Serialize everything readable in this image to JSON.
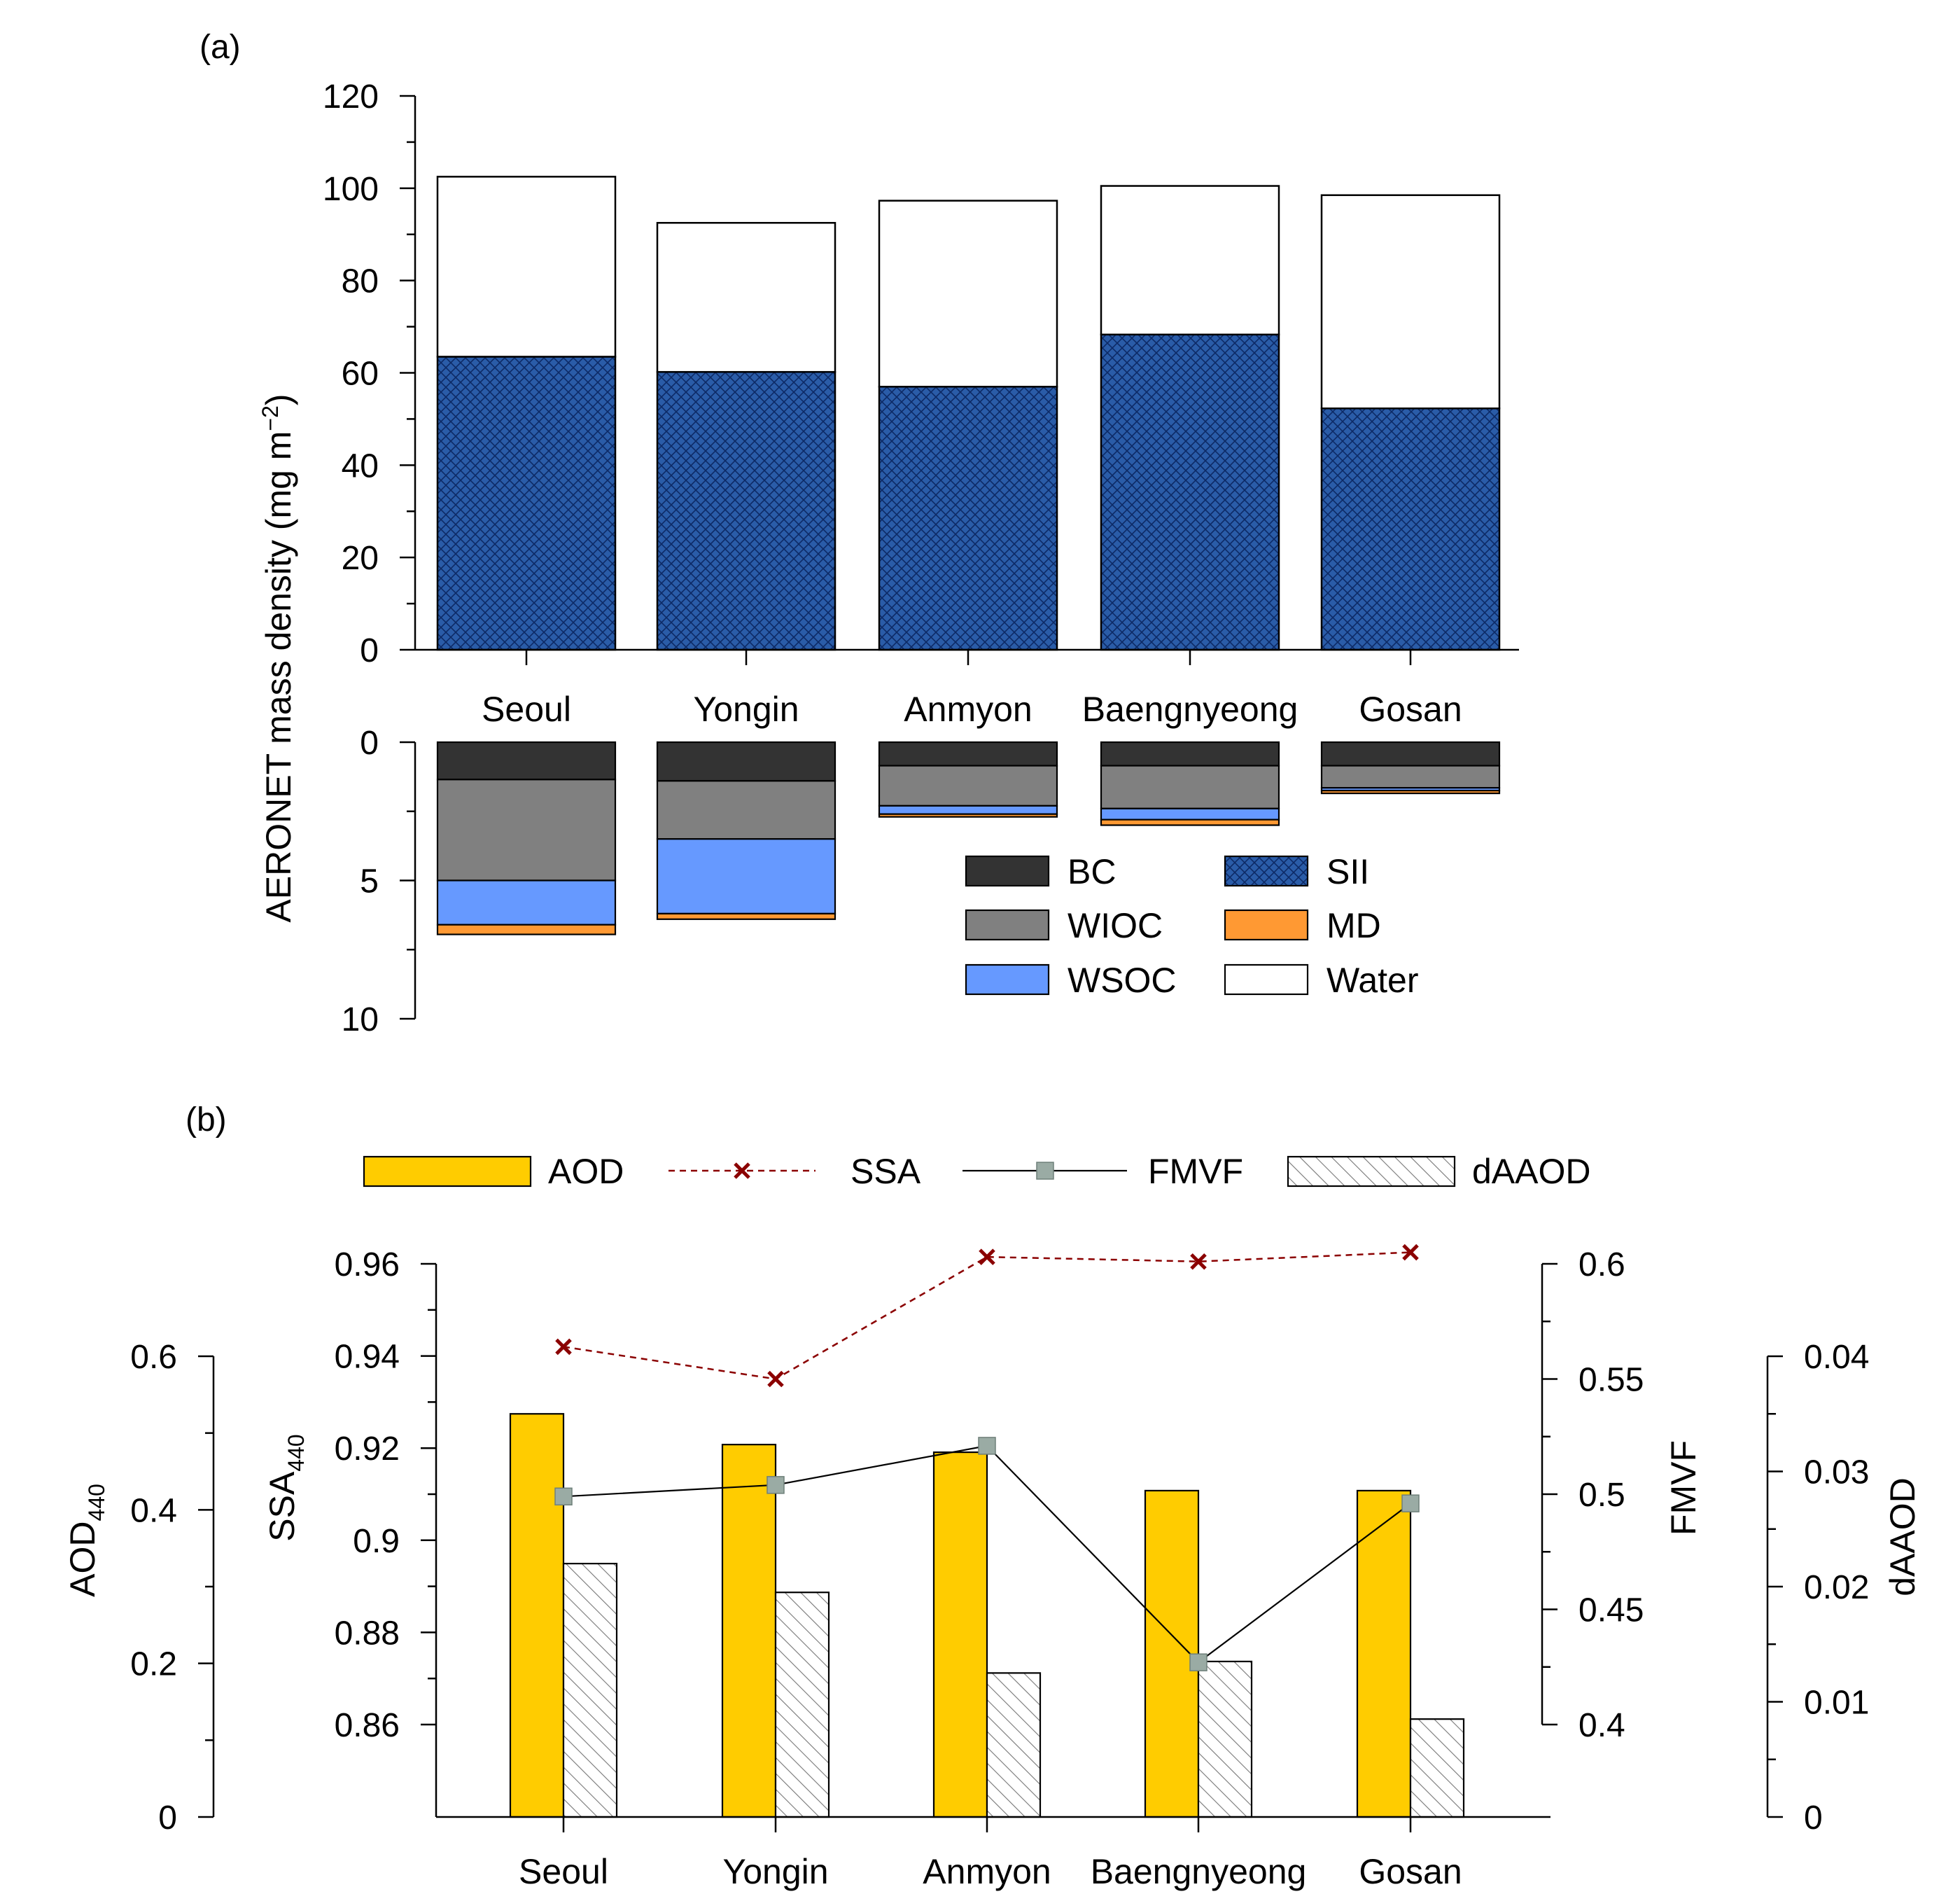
{
  "colors": {
    "BC": "#333333",
    "WIOC": "#808080",
    "WSOC": "#6699ff",
    "MD": "#ff9933",
    "SII": "#2a5ca8",
    "Water": "#ffffff",
    "AOD": "#ffcc00",
    "SSA": "#8b0000",
    "FMVF_marker": "#9aaba4",
    "dAAOD_hatch": "#777777"
  },
  "chart_data": [
    {
      "type": "bar",
      "panel_label": "(a)",
      "ylabel": "AERONET mass density (mg m",
      "ylabel_sup": "−2",
      "ylabel_close": ")",
      "categories": [
        "Seoul",
        "Yongin",
        "Anmyon",
        "Baengnyeong",
        "Gosan"
      ],
      "upper": {
        "stacked": true,
        "ylim": [
          0,
          120
        ],
        "yticks": [
          "0",
          "20",
          "40",
          "60",
          "80",
          "100",
          "120"
        ],
        "series": [
          {
            "name": "SII",
            "values": [
              63.5,
              60.2,
              57.0,
              68.3,
              52.3
            ]
          },
          {
            "name": "Water",
            "values": [
              39.0,
              32.3,
              40.3,
              32.2,
              46.2
            ]
          }
        ]
      },
      "lower": {
        "stacked": true,
        "inverted": true,
        "ylim": [
          0,
          10
        ],
        "yticks": [
          "0",
          "5",
          "10"
        ],
        "series": [
          {
            "name": "BC",
            "values": [
              1.35,
              1.4,
              0.85,
              0.85,
              0.85
            ]
          },
          {
            "name": "WIOC",
            "values": [
              3.65,
              2.1,
              1.45,
              1.55,
              0.8
            ]
          },
          {
            "name": "WSOC",
            "values": [
              1.6,
              2.7,
              0.3,
              0.4,
              0.1
            ]
          },
          {
            "name": "MD",
            "values": [
              0.35,
              0.2,
              0.1,
              0.2,
              0.1
            ]
          }
        ]
      },
      "legend": [
        "BC",
        "WIOC",
        "WSOC",
        "SII",
        "MD",
        "Water"
      ]
    },
    {
      "type": "bar",
      "panel_label": "(b)",
      "categories": [
        "Seoul",
        "Yongin",
        "Anmyon",
        "Baengnyeong",
        "Gosan"
      ],
      "legend": [
        "AOD",
        "SSA",
        "FMVF",
        "dAAOD"
      ],
      "axes": {
        "aod": {
          "label": "AOD",
          "sub": "440",
          "ylim": [
            0,
            0.6
          ],
          "yticks": [
            "0",
            "0.2",
            "0.4",
            "0.6"
          ]
        },
        "ssa": {
          "label": "SSA",
          "sub": "440",
          "ylim": [
            0.86,
            0.96
          ],
          "yticks": [
            "0.86",
            "0.88",
            "0.9",
            "0.92",
            "0.94",
            "0.96"
          ]
        },
        "fmvf": {
          "label": "FMVF",
          "ylim": [
            0.4,
            0.6
          ],
          "yticks": [
            "0.4",
            "0.45",
            "0.5",
            "0.55",
            "0.6"
          ]
        },
        "daaod": {
          "label": "dAAOD",
          "ylim": [
            0,
            0.04
          ],
          "yticks": [
            "0",
            "0.01",
            "0.02",
            "0.03",
            "0.04"
          ]
        }
      },
      "series": [
        {
          "name": "AOD",
          "kind": "bar",
          "axis": "aod",
          "values": [
            0.525,
            0.485,
            0.475,
            0.425,
            0.425
          ]
        },
        {
          "name": "dAAOD",
          "kind": "bar",
          "axis": "daaod",
          "values": [
            0.022,
            0.0195,
            0.0125,
            0.0135,
            0.0085
          ]
        },
        {
          "name": "SSA",
          "kind": "line",
          "axis": "ssa",
          "values": [
            0.942,
            0.935,
            0.9615,
            0.9605,
            0.9625
          ]
        },
        {
          "name": "FMVF",
          "kind": "line",
          "axis": "fmvf",
          "values": [
            0.499,
            0.504,
            0.521,
            0.427,
            0.496
          ]
        }
      ]
    }
  ]
}
